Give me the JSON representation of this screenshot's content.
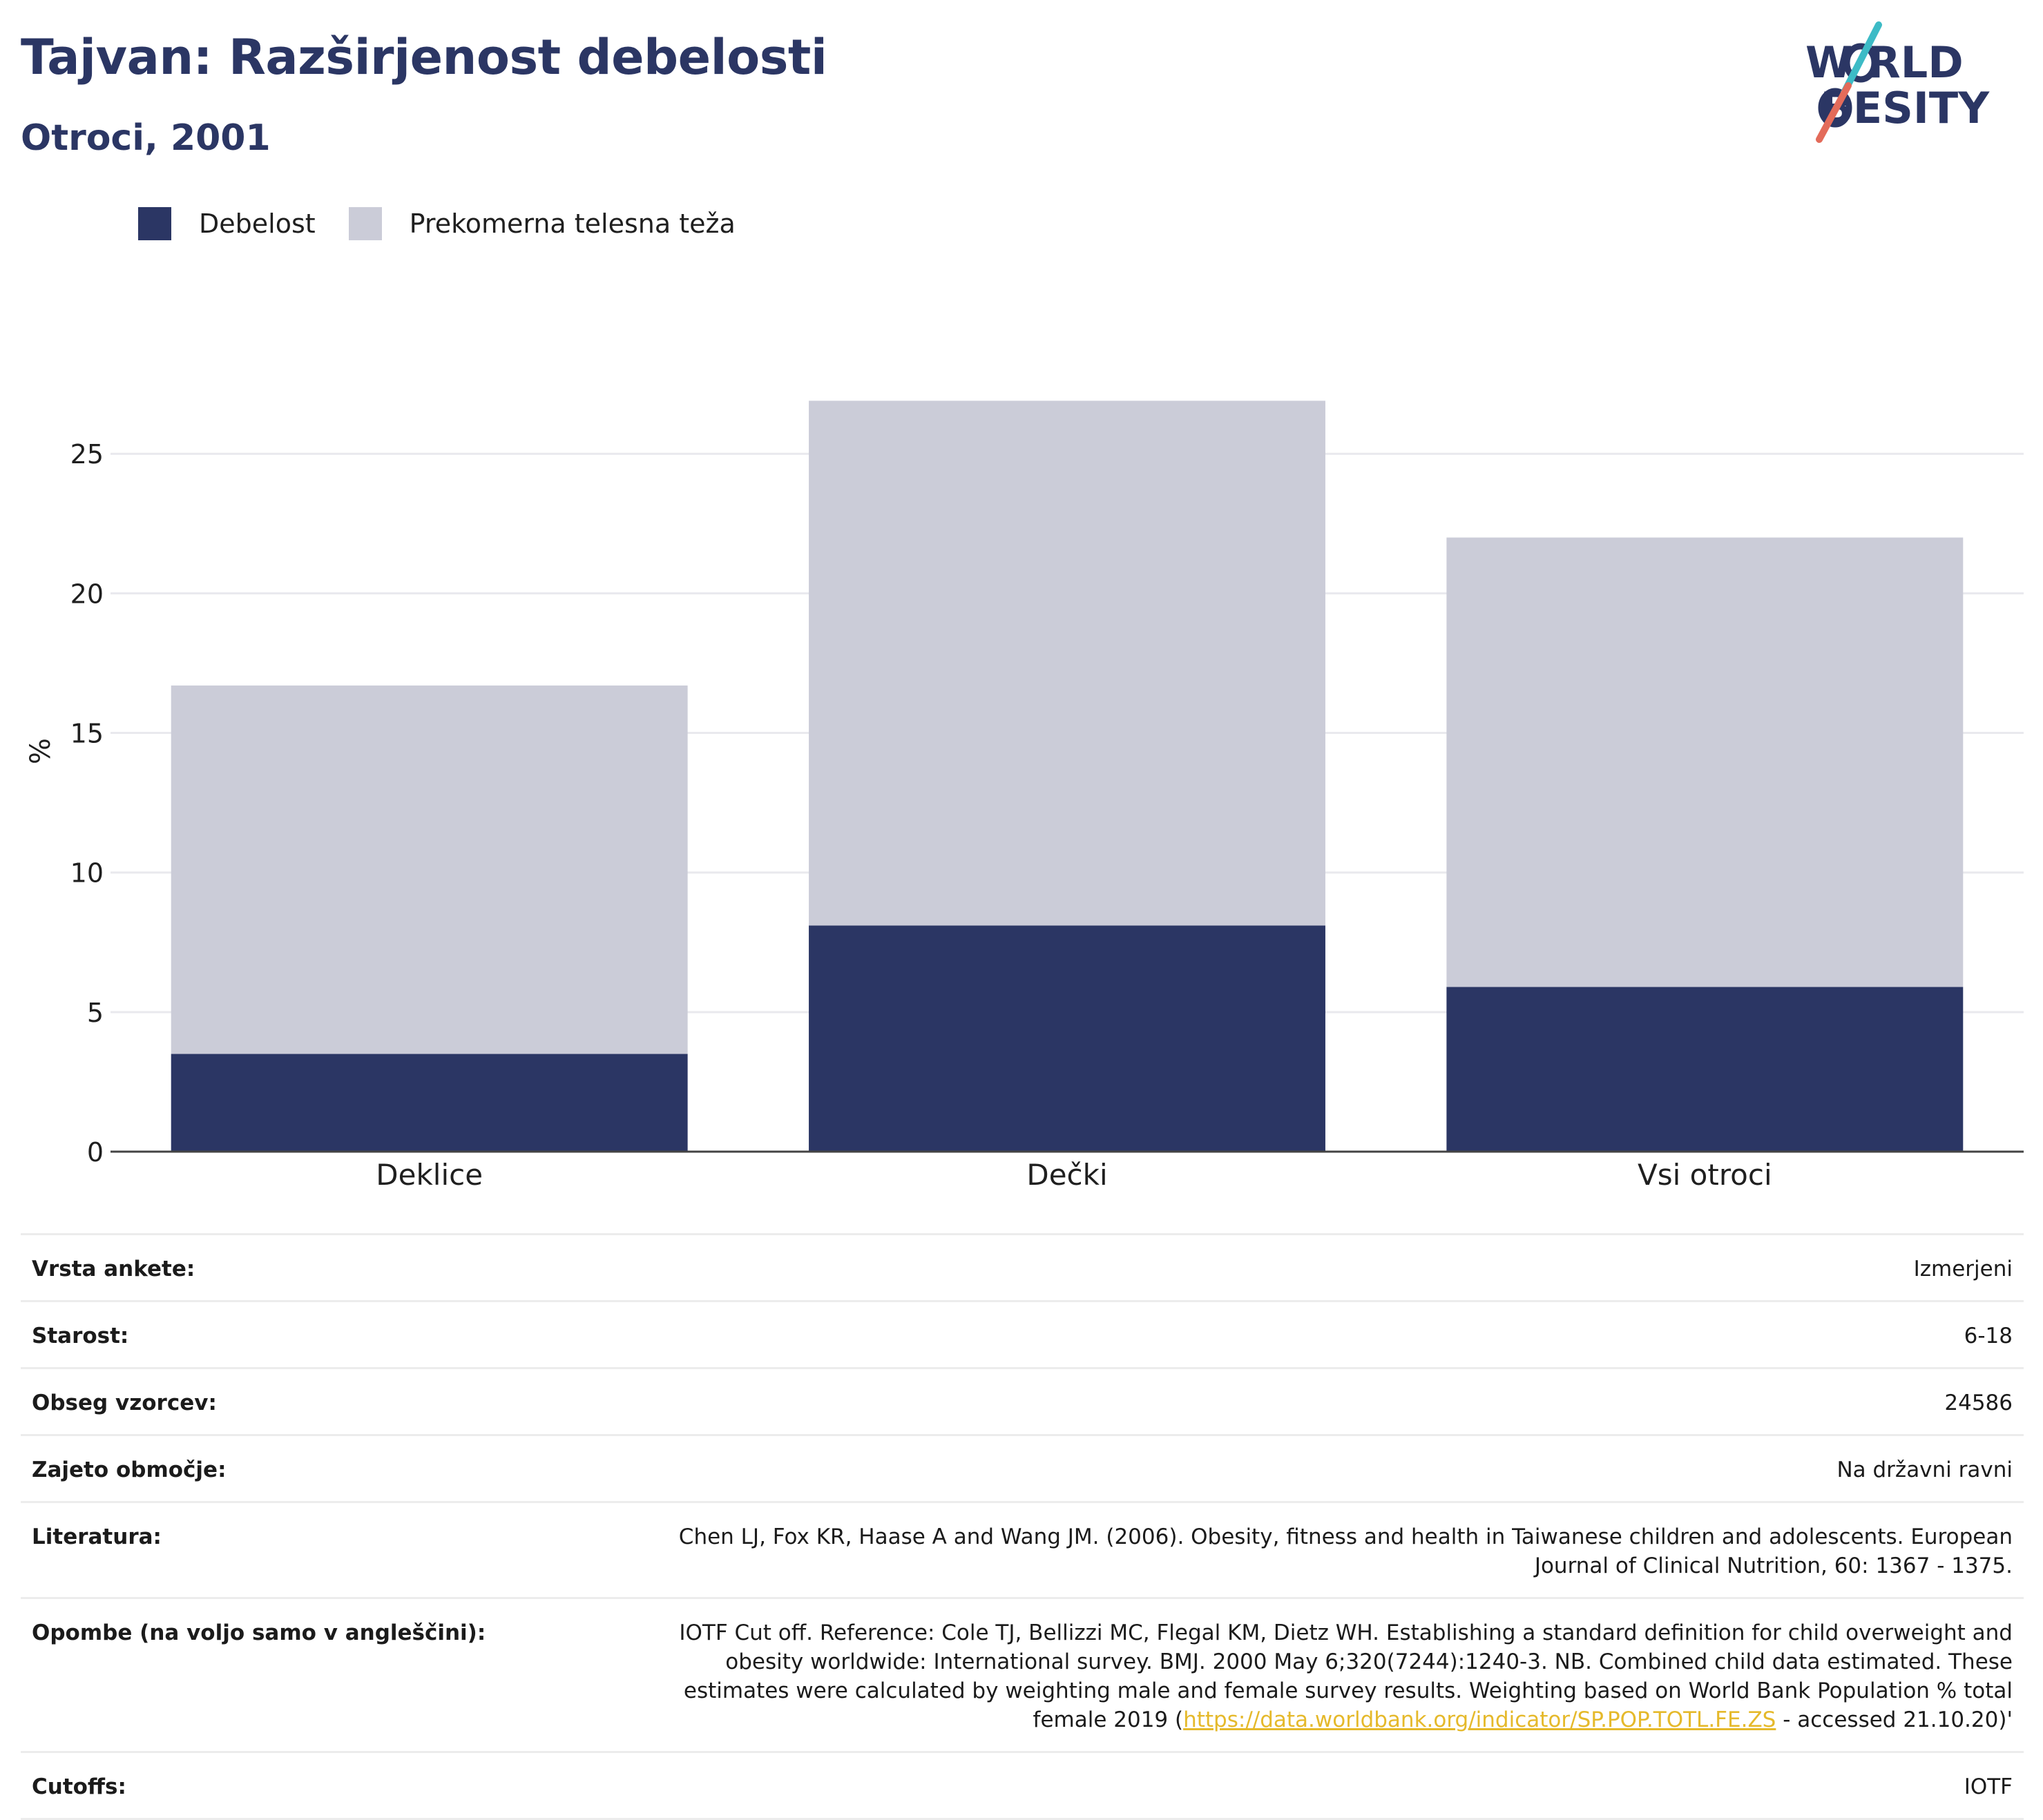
{
  "header": {
    "title": "Tajvan: Razširjenost debelosti",
    "subtitle": "Otroci, 2001"
  },
  "logo": {
    "line1": "W RLD",
    "line2": " BESITY",
    "colors": {
      "teal": "#3dbbc6",
      "coral": "#e36b5a",
      "navy": "#2b3664"
    }
  },
  "legend": [
    {
      "label": "Debelost",
      "color": "#2b3664"
    },
    {
      "label": "Prekomerna telesna teža",
      "color": "#cbccd8"
    }
  ],
  "chart_data": {
    "type": "bar",
    "stacked": true,
    "categories": [
      "Deklice",
      "Dečki",
      "Vsi otroci"
    ],
    "series": [
      {
        "name": "Debelost",
        "values": [
          3.5,
          8.1,
          5.9
        ],
        "color": "#2b3664"
      },
      {
        "name": "Prekomerna telesna teža",
        "values": [
          13.2,
          18.8,
          16.1
        ],
        "color": "#cbccd8"
      }
    ],
    "ylabel": "%",
    "ylim": [
      0,
      27.9
    ],
    "yticks": [
      0,
      5,
      10,
      15,
      20,
      25
    ],
    "grid": true,
    "legend_position": "top-left"
  },
  "info": {
    "rows": [
      {
        "key": "Vrsta ankete:",
        "value": "Izmerjeni"
      },
      {
        "key": "Starost:",
        "value": "6-18"
      },
      {
        "key": "Obseg vzorcev:",
        "value": "24586"
      },
      {
        "key": "Zajeto območje:",
        "value": "Na državni ravni"
      },
      {
        "key": "Literatura:",
        "value": "Chen LJ, Fox KR, Haase A and Wang JM. (2006). Obesity, fitness and health in Taiwanese children and adolescents. European Journal of Clinical Nutrition, 60: 1367 - 1375."
      }
    ],
    "notes": {
      "key": "Opombe (na voljo samo v angleščini):",
      "text": "IOTF Cut off. Reference: Cole TJ, Bellizzi MC, Flegal KM, Dietz WH. Establishing a standard definition for child overweight and obesity worldwide: International survey. BMJ. 2000 May 6;320(7244):1240-3. NB. Combined child data estimated. These estimates were calculated by weighting male and female survey results. Weighting based on World Bank Population % total female 2019 (",
      "link": "https://data.worldbank.org/indicator/SP.POP.TOTL.FE.ZS",
      "after": " - accessed 21.10.20)'"
    },
    "cutoffs": {
      "key": "Cutoffs:",
      "value": "IOTF"
    }
  }
}
